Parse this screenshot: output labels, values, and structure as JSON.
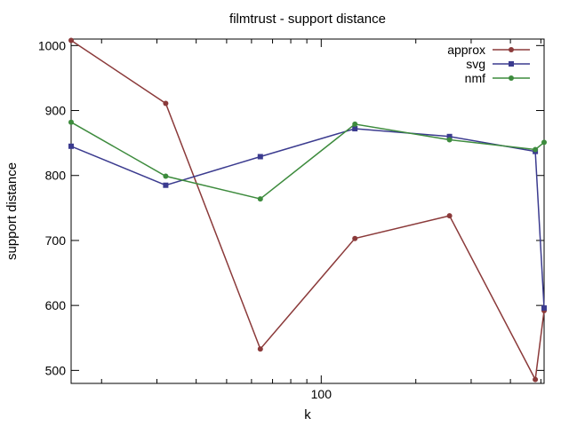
{
  "chart_data": {
    "type": "line",
    "title": "filmtrust - support distance",
    "xlabel": "k",
    "ylabel": "support distance",
    "xscale": "log",
    "xlim": [
      16,
      512
    ],
    "ylim": [
      480,
      1010
    ],
    "yticks": [
      500,
      600,
      700,
      800,
      900,
      1000
    ],
    "xticks": [
      100
    ],
    "xminor_ticks": [
      20,
      30,
      40,
      50,
      60,
      70,
      80,
      90,
      200,
      300,
      400,
      500
    ],
    "grid": false,
    "legend_position": "top-right",
    "series": [
      {
        "name": "approx",
        "color": "#8b3a3a",
        "marker": "circle",
        "x": [
          16,
          32,
          64,
          128,
          256,
          480,
          512
        ],
        "y": [
          1008,
          911,
          533,
          703,
          738,
          486,
          592
        ]
      },
      {
        "name": "svg",
        "color": "#3b3b8f",
        "marker": "square",
        "x": [
          16,
          32,
          64,
          128,
          256,
          480,
          512
        ],
        "y": [
          845,
          785,
          829,
          872,
          860,
          837,
          596
        ]
      },
      {
        "name": "nmf",
        "color": "#3d8b3d",
        "marker": "circle",
        "x": [
          16,
          32,
          64,
          128,
          256,
          480,
          512
        ],
        "y": [
          882,
          799,
          764,
          879,
          855,
          840,
          851
        ]
      }
    ]
  }
}
